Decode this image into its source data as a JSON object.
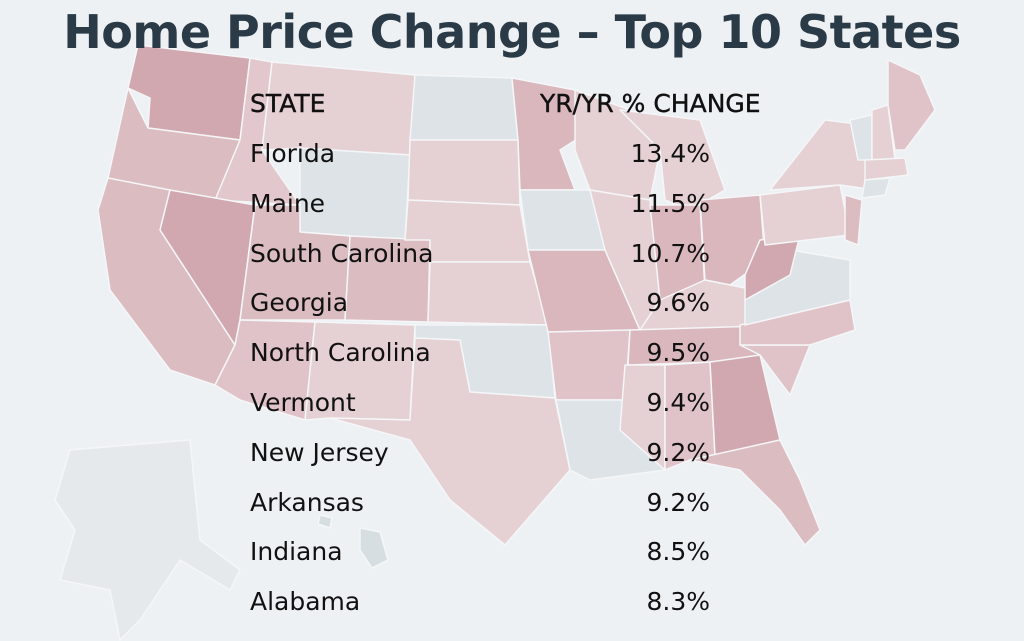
{
  "title": "Home Price Change – Top 10 States",
  "chart_data": {
    "type": "table",
    "title": "Home Price Change – Top 10 States",
    "columns": [
      "STATE",
      "YR/YR % CHANGE"
    ],
    "rows": [
      {
        "state": "Florida",
        "change": "13.4%"
      },
      {
        "state": "Maine",
        "change": "11.5%"
      },
      {
        "state": "South Carolina",
        "change": "10.7%"
      },
      {
        "state": "Georgia",
        "change": "9.6%"
      },
      {
        "state": "North Carolina",
        "change": "9.5%"
      },
      {
        "state": "Vermont",
        "change": "9.4%"
      },
      {
        "state": "New Jersey",
        "change": "9.2%"
      },
      {
        "state": "Arkansas",
        "change": "9.2%"
      },
      {
        "state": "Indiana",
        "change": "8.5%"
      },
      {
        "state": "Alabama",
        "change": "8.3%"
      }
    ]
  },
  "colors": {
    "background": "#eef1f4",
    "title": "#2a3a46",
    "map_dark": "#dcb8be",
    "map_light": "#e8d3d6",
    "map_neutral": "#dde3e6",
    "map_border": "#f4f6f8"
  }
}
